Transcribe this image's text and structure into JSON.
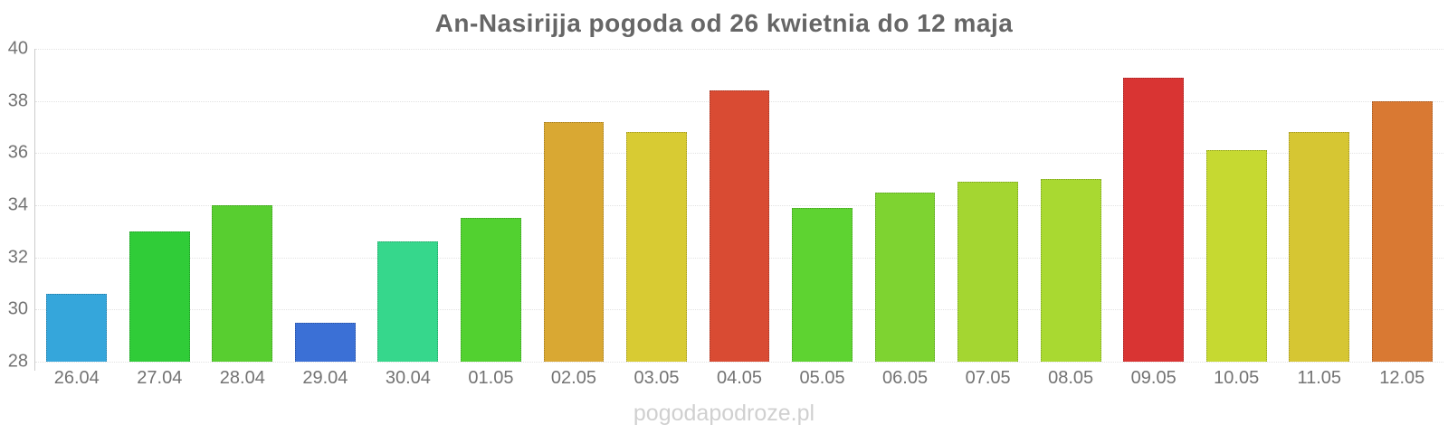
{
  "title": "An-Nasirijja pogoda od 26 kwietnia do 12 maja",
  "watermark": "pogodapodroze.pl",
  "chart_data": {
    "type": "bar",
    "title": "An-Nasirijja pogoda od 26 kwietnia do 12 maja",
    "xlabel": "",
    "ylabel": "",
    "ylim": [
      28,
      40
    ],
    "yticks": [
      28,
      30,
      32,
      34,
      36,
      38,
      40
    ],
    "grid": true,
    "legend": "none",
    "categories": [
      "26.04",
      "27.04",
      "28.04",
      "29.04",
      "30.04",
      "01.05",
      "02.05",
      "03.05",
      "04.05",
      "05.05",
      "06.05",
      "07.05",
      "08.05",
      "09.05",
      "10.05",
      "11.05",
      "12.05"
    ],
    "values": [
      30.6,
      33.0,
      34.0,
      29.5,
      32.6,
      33.5,
      37.2,
      36.8,
      38.4,
      33.9,
      34.5,
      34.9,
      35.0,
      38.9,
      36.1,
      36.8,
      38.0
    ],
    "bar_colors": [
      "#35a6db",
      "#30cc38",
      "#58ce30",
      "#3b70d6",
      "#36d78c",
      "#52d130",
      "#d9a833",
      "#d8cb33",
      "#d94b33",
      "#5ed331",
      "#7ed331",
      "#a4d631",
      "#a9d931",
      "#d93433",
      "#c6d931",
      "#d6c633",
      "#d97933"
    ]
  },
  "colors": {
    "title_text": "#666666",
    "axis_label_text": "#737373",
    "gridline": "#e2e2e2",
    "axis_line": "#cccccc",
    "watermark_text": "#d0d0d0",
    "background": "#ffffff"
  }
}
